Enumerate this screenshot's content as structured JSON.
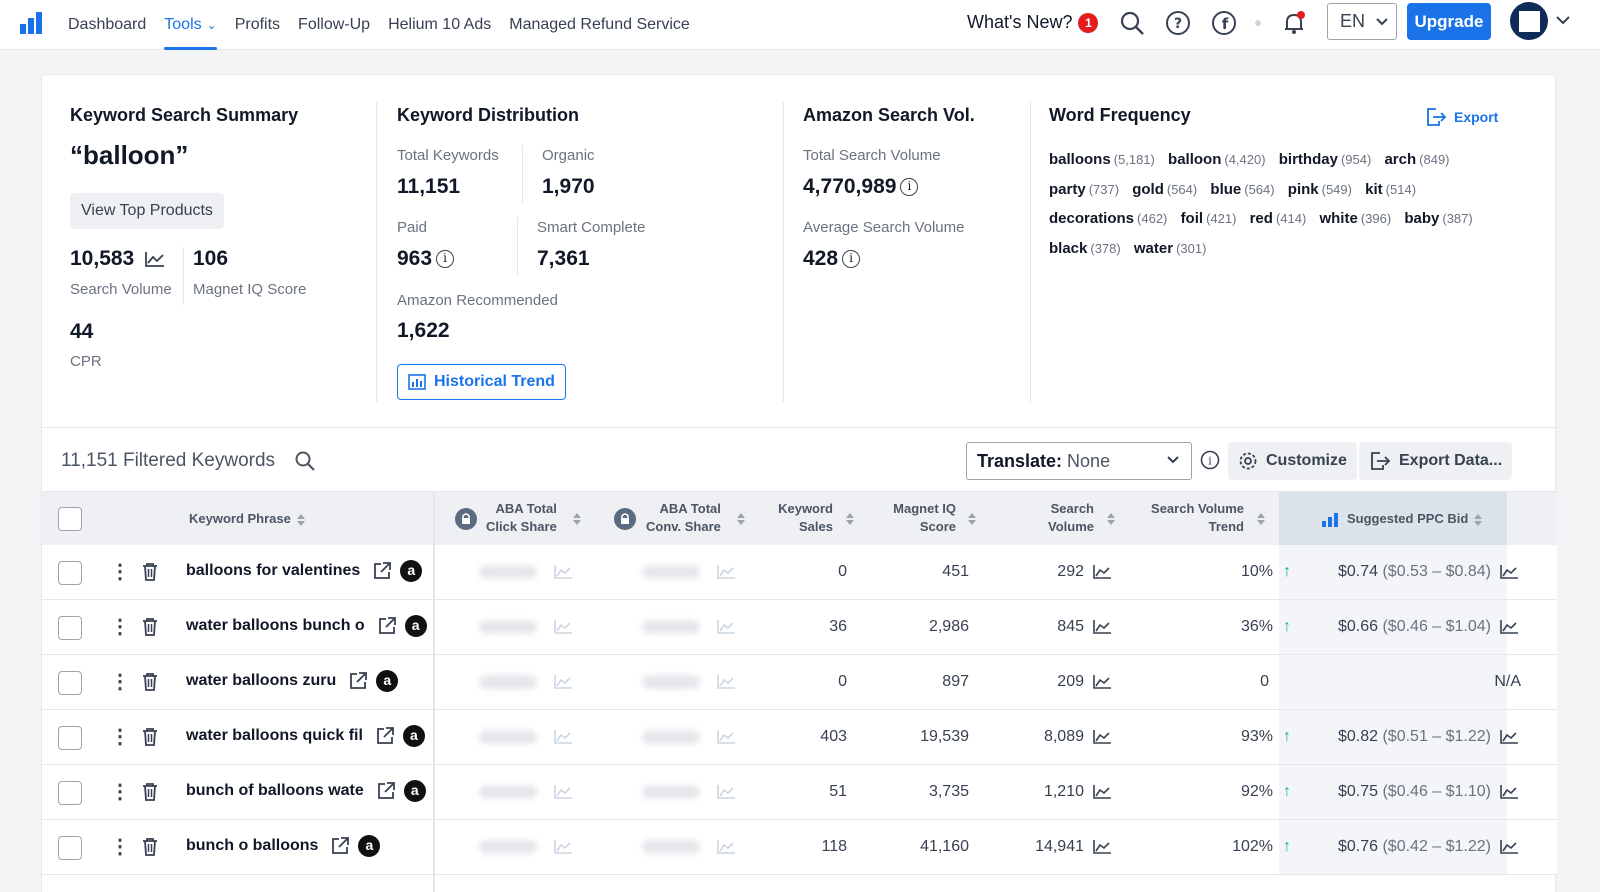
{
  "nav": {
    "items": [
      {
        "label": "Dashboard"
      },
      {
        "label": "Tools",
        "active": true
      },
      {
        "label": "Profits"
      },
      {
        "label": "Follow-Up"
      },
      {
        "label": "Helium 10 Ads"
      },
      {
        "label": "Managed Refund Service"
      }
    ],
    "whats_new": "What's New?",
    "notification_count": "1",
    "language": "EN",
    "upgrade": "Upgrade"
  },
  "summary": {
    "title": "Keyword Search Summary",
    "keyword": "“balloon”",
    "view_top_products": "View Top Products",
    "search_volume_value": "10,583",
    "search_volume_label": "Search Volume",
    "magnet_iq_value": "106",
    "magnet_iq_label": "Magnet IQ Score",
    "cpr_value": "44",
    "cpr_label": "CPR"
  },
  "distribution": {
    "title": "Keyword Distribution",
    "total_keywords_label": "Total Keywords",
    "total_keywords_value": "11,151",
    "organic_label": "Organic",
    "organic_value": "1,970",
    "paid_label": "Paid",
    "paid_value": "963",
    "smart_complete_label": "Smart Complete",
    "smart_complete_value": "7,361",
    "amazon_recommended_label": "Amazon Recommended",
    "amazon_recommended_value": "1,622",
    "historical_trend": "Historical Trend"
  },
  "search_vol": {
    "title": "Amazon Search Vol.",
    "total_label": "Total Search Volume",
    "total_value": "4,770,989",
    "average_label": "Average Search Volume",
    "average_value": "428"
  },
  "word_frequency": {
    "title": "Word Frequency",
    "export": "Export",
    "words": [
      {
        "word": "balloons",
        "count": "(5,181)"
      },
      {
        "word": "balloon",
        "count": "(4,420)"
      },
      {
        "word": "birthday",
        "count": "(954)"
      },
      {
        "word": "arch",
        "count": "(849)"
      },
      {
        "word": "party",
        "count": "(737)"
      },
      {
        "word": "gold",
        "count": "(564)"
      },
      {
        "word": "blue",
        "count": "(564)"
      },
      {
        "word": "pink",
        "count": "(549)"
      },
      {
        "word": "kit",
        "count": "(514)"
      },
      {
        "word": "decorations",
        "count": "(462)"
      },
      {
        "word": "foil",
        "count": "(421)"
      },
      {
        "word": "red",
        "count": "(414)"
      },
      {
        "word": "white",
        "count": "(396)"
      },
      {
        "word": "baby",
        "count": "(387)"
      },
      {
        "word": "black",
        "count": "(378)"
      },
      {
        "word": "water",
        "count": "(301)"
      }
    ]
  },
  "filter": {
    "count_label": "11,151 Filtered Keywords",
    "translate_label": "Translate:",
    "translate_value": "None",
    "customize": "Customize",
    "export_data": "Export Data..."
  },
  "table": {
    "headers": {
      "phrase": "Keyword Phrase",
      "aba_click_1": "ABA Total",
      "aba_click_2": "Click Share",
      "aba_conv_1": "ABA Total",
      "aba_conv_2": "Conv. Share",
      "kw_sales_1": "Keyword",
      "kw_sales_2": "Sales",
      "miq_1": "Magnet IQ",
      "miq_2": "Score",
      "sv_1": "Search",
      "sv_2": "Volume",
      "svt_1": "Search Volume",
      "svt_2": "Trend",
      "ppc": "Suggested PPC Bid"
    },
    "rows": [
      {
        "phrase": "balloons for valentines",
        "sales": "0",
        "miq": "451",
        "sv": "292",
        "trend": "10%",
        "trend_up": true,
        "bid": "$0.74",
        "range": "($0.53 – $0.84)"
      },
      {
        "phrase": "water balloons bunch o",
        "sales": "36",
        "miq": "2,986",
        "sv": "845",
        "trend": "36%",
        "trend_up": true,
        "bid": "$0.66",
        "range": "($0.46 – $1.04)"
      },
      {
        "phrase": "water balloons zuru",
        "sales": "0",
        "miq": "897",
        "sv": "209",
        "trend": "0",
        "trend_up": false,
        "bid": "N/A",
        "range": ""
      },
      {
        "phrase": "water balloons quick fil",
        "sales": "403",
        "miq": "19,539",
        "sv": "8,089",
        "trend": "93%",
        "trend_up": true,
        "bid": "$0.82",
        "range": "($0.51 – $1.22)"
      },
      {
        "phrase": "bunch of balloons wate",
        "sales": "51",
        "miq": "3,735",
        "sv": "1,210",
        "trend": "92%",
        "trend_up": true,
        "bid": "$0.75",
        "range": "($0.46 – $1.10)"
      },
      {
        "phrase": "bunch o balloons",
        "sales": "118",
        "miq": "41,160",
        "sv": "14,941",
        "trend": "102%",
        "trend_up": true,
        "bid": "$0.76",
        "range": "($0.42 – $1.22)"
      }
    ]
  },
  "colors": {
    "accent": "#1a73e8",
    "trend_up": "#10b981",
    "badge": "#e11d1d"
  }
}
